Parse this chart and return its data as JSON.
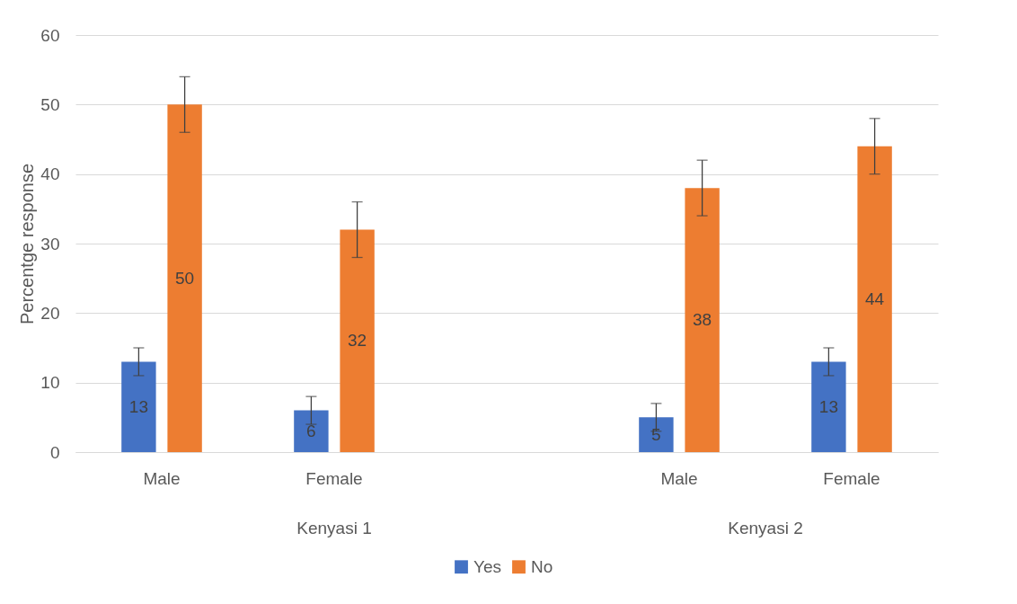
{
  "chart_data": {
    "type": "bar",
    "ylabel": "Percentge response",
    "categories": [
      "Male",
      "Female",
      null,
      "Male",
      "Female"
    ],
    "series": [
      {
        "name": "Yes",
        "color": "#4472c4",
        "values": [
          13,
          6,
          null,
          5,
          13
        ],
        "errors": [
          2,
          2,
          null,
          2,
          2
        ]
      },
      {
        "name": "No",
        "color": "#ed7d31",
        "values": [
          50,
          32,
          null,
          38,
          44
        ],
        "errors": [
          4,
          4,
          null,
          4,
          4
        ]
      }
    ],
    "annotations": [
      "Kenyasi 1",
      "Kenyasi 2"
    ],
    "ylim": [
      0,
      60
    ],
    "yticks": [
      0,
      10,
      20,
      30,
      40,
      50,
      60
    ],
    "grid": "y",
    "legend": "bottom",
    "data_labels": true
  }
}
